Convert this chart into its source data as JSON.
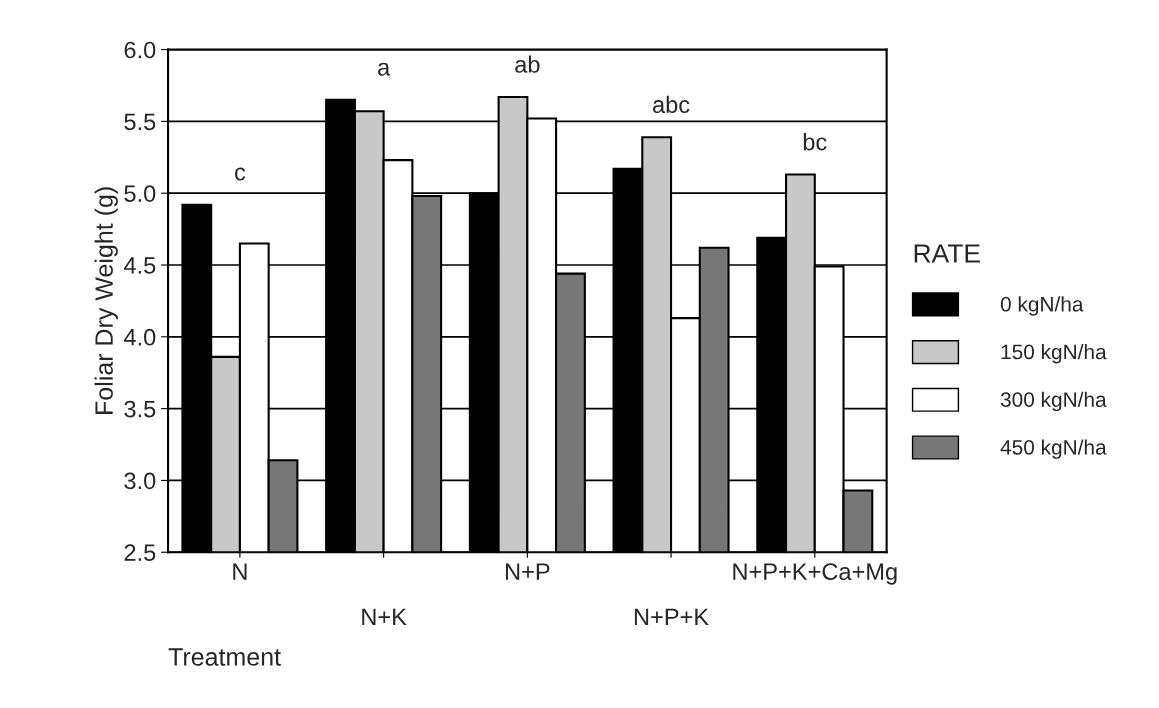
{
  "chart_data": {
    "type": "bar",
    "ylabel": "Foliar Dry Weight (g)",
    "xlabel": "Treatment",
    "legend_title": "RATE",
    "legend": "right",
    "grid": "y",
    "categories": [
      "N",
      "N+K",
      "N+P",
      "N+P+K",
      "N+P+K+Ca+Mg"
    ],
    "ylim": [
      2.5,
      6.0
    ],
    "yticks": [
      {
        "value": 2.5,
        "label": "2.5"
      },
      {
        "value": 3.0,
        "label": "3.0"
      },
      {
        "value": 3.5,
        "label": "3.5"
      },
      {
        "value": 4.0,
        "label": "4.0"
      },
      {
        "value": 4.5,
        "label": "4.5"
      },
      {
        "value": 5.0,
        "label": "5.0"
      },
      {
        "value": 5.5,
        "label": "5.5"
      },
      {
        "value": 6.0,
        "label": "6.0"
      }
    ],
    "series": [
      {
        "name": "0 kgN/ha",
        "color": "#000000",
        "values": [
          4.92,
          5.65,
          5.0,
          5.17,
          4.69
        ]
      },
      {
        "name": "150 kgN/ha",
        "color": "#c8c8c8",
        "values": [
          3.86,
          5.57,
          5.67,
          5.39,
          5.13
        ]
      },
      {
        "name": "300 kgN/ha",
        "color": "#ffffff",
        "values": [
          4.65,
          5.23,
          5.52,
          4.13,
          4.49
        ]
      },
      {
        "name": "450 kgN/ha",
        "color": "#777777",
        "values": [
          3.14,
          4.98,
          4.44,
          4.62,
          2.93
        ]
      }
    ],
    "annotations": [
      "c",
      "a",
      "ab",
      "abc",
      "bc"
    ]
  }
}
